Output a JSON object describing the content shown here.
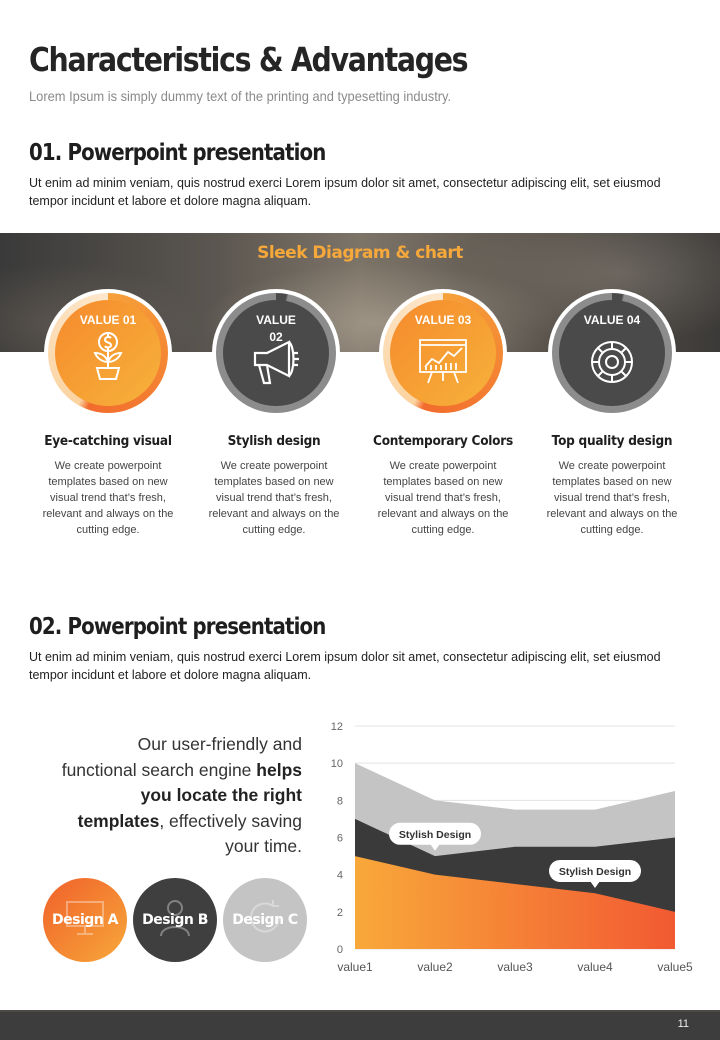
{
  "header": {
    "title": "Characteristics & Advantages",
    "subtitle": "Lorem Ipsum is simply dummy text of the printing and typesetting industry."
  },
  "section1": {
    "title": "01. Powerpoint presentation",
    "body": "Ut enim ad minim veniam, quis nostrud exerci  Lorem ipsum dolor sit amet, consectetur adipiscing elit, set eiusmod tempor incidunt et labore et dolore magna aliquam."
  },
  "band": {
    "title": "Sleek Diagram & chart"
  },
  "values": [
    {
      "label": "VALUE 01",
      "icon": "money-plant-icon",
      "title": "Eye-catching visual",
      "desc": "We create powerpoint templates based on new visual trend that’s fresh, relevant and always on the cutting edge.",
      "style": "orange"
    },
    {
      "label": "VALUE 02",
      "icon": "megaphone-icon",
      "title": "Stylish design",
      "desc": "We create powerpoint templates based on new visual trend that’s fresh, relevant and always on the cutting edge.",
      "style": "dark"
    },
    {
      "label": "VALUE 03",
      "icon": "presentation-board-icon",
      "title": "Contemporary Colors",
      "desc": "We create powerpoint templates based on new visual trend that’s fresh, relevant and always on the cutting edge.",
      "style": "orange"
    },
    {
      "label": "VALUE 04",
      "icon": "gear-icon",
      "title": "Top quality design",
      "desc": "We create powerpoint templates based on new visual trend that’s fresh, relevant and always on the cutting edge.",
      "style": "dark"
    }
  ],
  "section2": {
    "title": "02. Powerpoint presentation",
    "body": "Ut enim ad minim veniam, quis nostrud exerci  Lorem ipsum dolor sit amet, consectetur adipiscing elit, set eiusmod tempor incidunt et labore et dolore magna aliquam.",
    "lead_1": "Our user-friendly and functional search engine ",
    "lead_bold": "helps you locate the right templates",
    "lead_2": ", effectively saving your time."
  },
  "designs": [
    {
      "label": "Design A",
      "color": "#f47a2e",
      "icon": "presentation-icon"
    },
    {
      "label": "Design B",
      "color": "#3f3f3f",
      "icon": "person-icon"
    },
    {
      "label": "Design C",
      "color": "#c4c4c4",
      "icon": "refresh-icon"
    }
  ],
  "chart_data": {
    "type": "area",
    "categories": [
      "value1",
      "value2",
      "value3",
      "value4",
      "value5"
    ],
    "ylim": [
      0,
      12
    ],
    "yticks": [
      0,
      2,
      4,
      6,
      8,
      10,
      12
    ],
    "series": [
      {
        "values": [
          10,
          8,
          7.5,
          7.5,
          8.5
        ],
        "color": "#c4c4c4"
      },
      {
        "values": [
          7,
          5,
          5.5,
          5.5,
          6
        ],
        "color": "#3a3a3a"
      },
      {
        "values": [
          5,
          4,
          3.5,
          3,
          2
        ],
        "color": "#f47a2e"
      }
    ],
    "annotations": [
      {
        "text": "Stylish Design",
        "category": "value2",
        "y": 6.2
      },
      {
        "text": "Stylish Design",
        "category": "value4",
        "y": 4.2
      }
    ],
    "grid": true
  },
  "footer": {
    "page": "11"
  }
}
